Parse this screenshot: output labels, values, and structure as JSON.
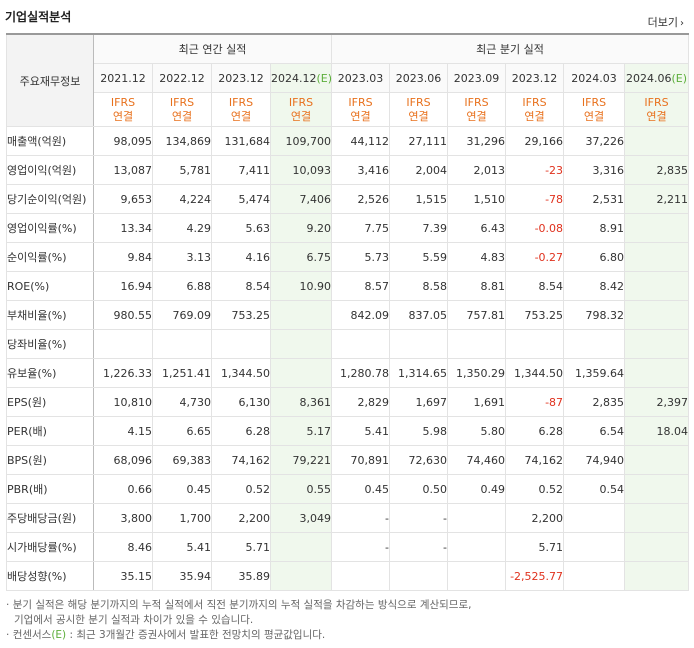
{
  "header": {
    "title": "기업실적분석",
    "more_label": "더보기"
  },
  "table": {
    "corner_label": "주요재무정보",
    "groups": {
      "annual": "최근 연간 실적",
      "quarter": "최근 분기 실적"
    },
    "periods": [
      {
        "label": "2021.12",
        "est": ""
      },
      {
        "label": "2022.12",
        "est": ""
      },
      {
        "label": "2023.12",
        "est": ""
      },
      {
        "label": "2024.12",
        "est": "(E)"
      },
      {
        "label": "2023.03",
        "est": ""
      },
      {
        "label": "2023.06",
        "est": ""
      },
      {
        "label": "2023.09",
        "est": ""
      },
      {
        "label": "2023.12",
        "est": ""
      },
      {
        "label": "2024.03",
        "est": ""
      },
      {
        "label": "2024.06",
        "est": "(E)"
      }
    ],
    "ifrs_top": "IFRS",
    "ifrs_bottom": "연결",
    "rows": [
      {
        "label": "매출액(억원)",
        "values": [
          "98,095",
          "134,869",
          "131,684",
          "109,700",
          "44,112",
          "27,111",
          "31,296",
          "29,166",
          "37,226",
          ""
        ]
      },
      {
        "label": "영업이익(억원)",
        "values": [
          "13,087",
          "5,781",
          "7,411",
          "10,093",
          "3,416",
          "2,004",
          "2,013",
          "-23",
          "3,316",
          "2,835"
        ]
      },
      {
        "label": "당기순이익(억원)",
        "values": [
          "9,653",
          "4,224",
          "5,474",
          "7,406",
          "2,526",
          "1,515",
          "1,510",
          "-78",
          "2,531",
          "2,211"
        ]
      },
      {
        "label": "영업이익률(%)",
        "values": [
          "13.34",
          "4.29",
          "5.63",
          "9.20",
          "7.75",
          "7.39",
          "6.43",
          "-0.08",
          "8.91",
          ""
        ]
      },
      {
        "label": "순이익률(%)",
        "values": [
          "9.84",
          "3.13",
          "4.16",
          "6.75",
          "5.73",
          "5.59",
          "4.83",
          "-0.27",
          "6.80",
          ""
        ]
      },
      {
        "label": "ROE(%)",
        "values": [
          "16.94",
          "6.88",
          "8.54",
          "10.90",
          "8.57",
          "8.58",
          "8.81",
          "8.54",
          "8.42",
          ""
        ]
      },
      {
        "label": "부채비율(%)",
        "values": [
          "980.55",
          "769.09",
          "753.25",
          "",
          "842.09",
          "837.05",
          "757.81",
          "753.25",
          "798.32",
          ""
        ]
      },
      {
        "label": "당좌비율(%)",
        "values": [
          "",
          "",
          "",
          "",
          "",
          "",
          "",
          "",
          "",
          ""
        ]
      },
      {
        "label": "유보율(%)",
        "values": [
          "1,226.33",
          "1,251.41",
          "1,344.50",
          "",
          "1,280.78",
          "1,314.65",
          "1,350.29",
          "1,344.50",
          "1,359.64",
          ""
        ]
      },
      {
        "label": "EPS(원)",
        "values": [
          "10,810",
          "4,730",
          "6,130",
          "8,361",
          "2,829",
          "1,697",
          "1,691",
          "-87",
          "2,835",
          "2,397"
        ]
      },
      {
        "label": "PER(배)",
        "values": [
          "4.15",
          "6.65",
          "6.28",
          "5.17",
          "5.41",
          "5.98",
          "5.80",
          "6.28",
          "6.54",
          "18.04"
        ]
      },
      {
        "label": "BPS(원)",
        "values": [
          "68,096",
          "69,383",
          "74,162",
          "79,221",
          "70,891",
          "72,630",
          "74,460",
          "74,162",
          "74,940",
          ""
        ]
      },
      {
        "label": "PBR(배)",
        "values": [
          "0.66",
          "0.45",
          "0.52",
          "0.55",
          "0.45",
          "0.50",
          "0.49",
          "0.52",
          "0.54",
          ""
        ]
      },
      {
        "label": "주당배당금(원)",
        "values": [
          "3,800",
          "1,700",
          "2,200",
          "3,049",
          "-",
          "-",
          "",
          "2,200",
          "",
          ""
        ]
      },
      {
        "label": "시가배당률(%)",
        "values": [
          "8.46",
          "5.41",
          "5.71",
          "",
          "-",
          "-",
          "",
          "5.71",
          "",
          ""
        ]
      },
      {
        "label": "배당성향(%)",
        "values": [
          "35.15",
          "35.94",
          "35.89",
          "",
          "",
          "",
          "",
          "-2,525.77",
          "",
          ""
        ]
      }
    ]
  },
  "notes": {
    "line1": "분기 실적은 해당 분기까지의 누적 실적에서 직전 분기까지의 누적 실적을 차감하는 방식으로 계산되므로,",
    "line2": "기업에서 공시한 분기 실적과 차이가 있을 수 있습니다.",
    "line3_prefix": "컨센서스",
    "line3_mark": "(E)",
    "line3_suffix": " : 최근 3개월간 증권사에서 발표한 전망치의 평균값입니다."
  },
  "colors": {
    "ifrs": "#e8711d",
    "estimate": "#5cae3b",
    "negative": "#e0321e",
    "estimate_bg": "#f0f8ed"
  }
}
